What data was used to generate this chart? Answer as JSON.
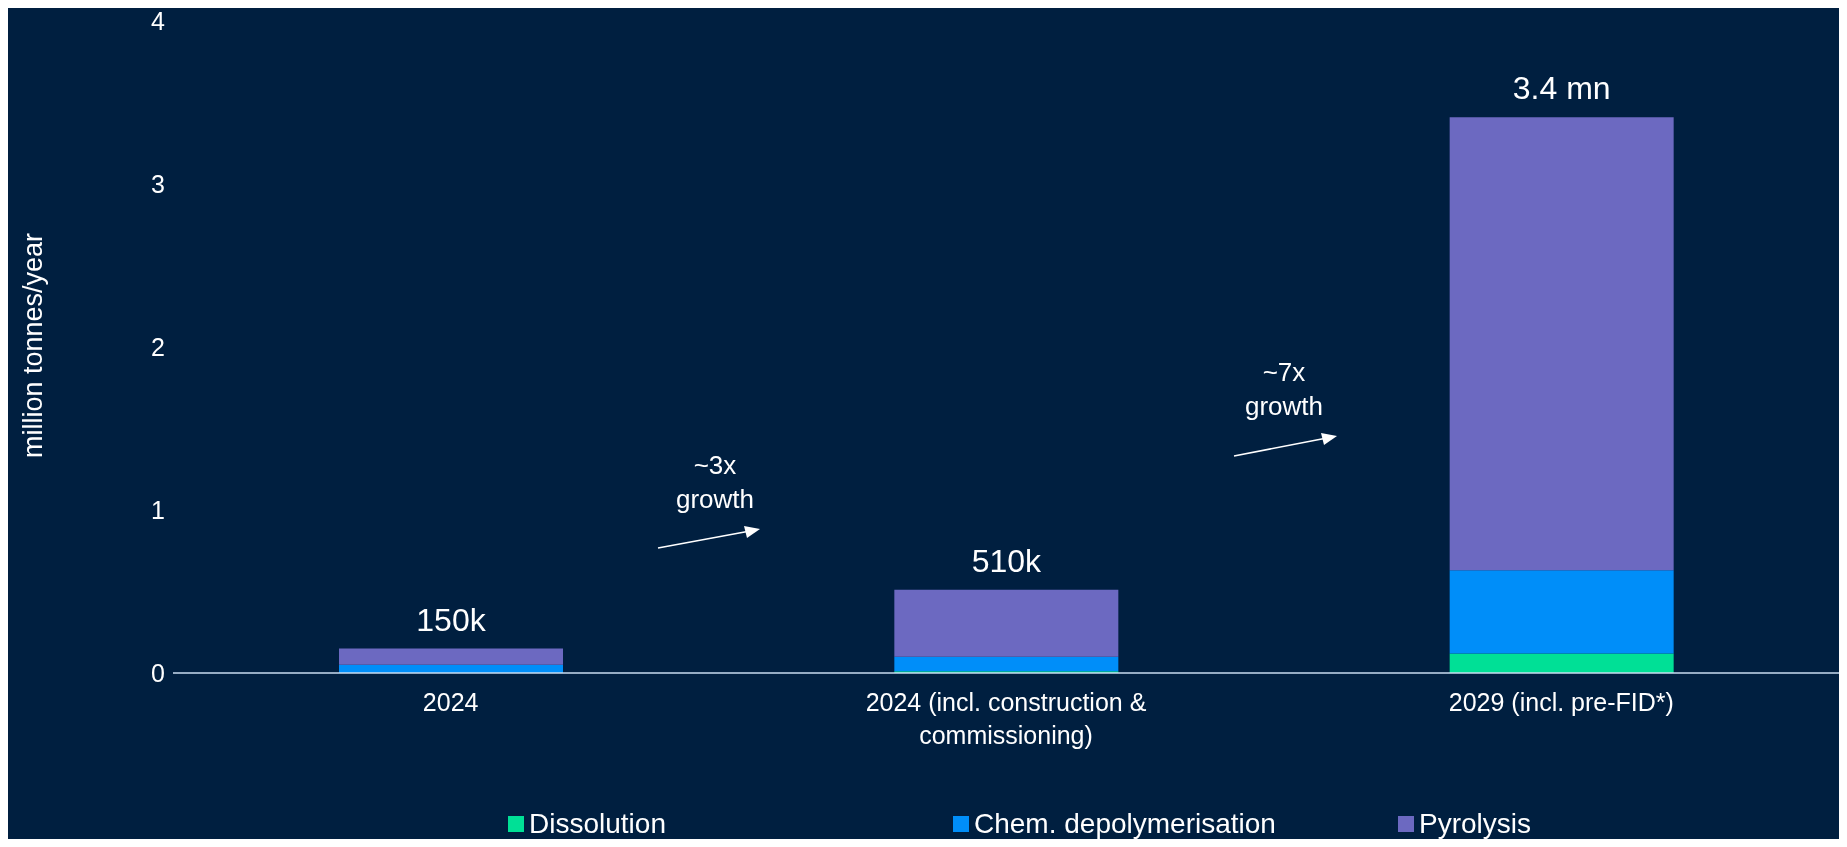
{
  "chart_data": {
    "type": "bar",
    "stacked": true,
    "ylabel": "million tonnes/year",
    "categories": [
      "2024",
      "2024 (incl. construction & commissioning)",
      "2029 (incl. pre-FID*)"
    ],
    "series": [
      {
        "name": "Dissolution",
        "color": "#00e096",
        "values": [
          0,
          0.01,
          0.12
        ]
      },
      {
        "name": "Chem. depolymerisation",
        "color": "#008ef9",
        "values": [
          0.05,
          0.09,
          0.51
        ]
      },
      {
        "name": "Pyrolysis",
        "color": "#6c69c1",
        "values": [
          0.1,
          0.41,
          2.78
        ]
      }
    ],
    "totals": [
      "150k",
      "510k",
      "3.4 mn"
    ],
    "ylim": [
      0,
      4
    ],
    "yticks": [
      0,
      1,
      2,
      3,
      4
    ],
    "grid": false,
    "legend": "bottom",
    "annotations": [
      "~3x growth",
      "~7x growth"
    ]
  }
}
